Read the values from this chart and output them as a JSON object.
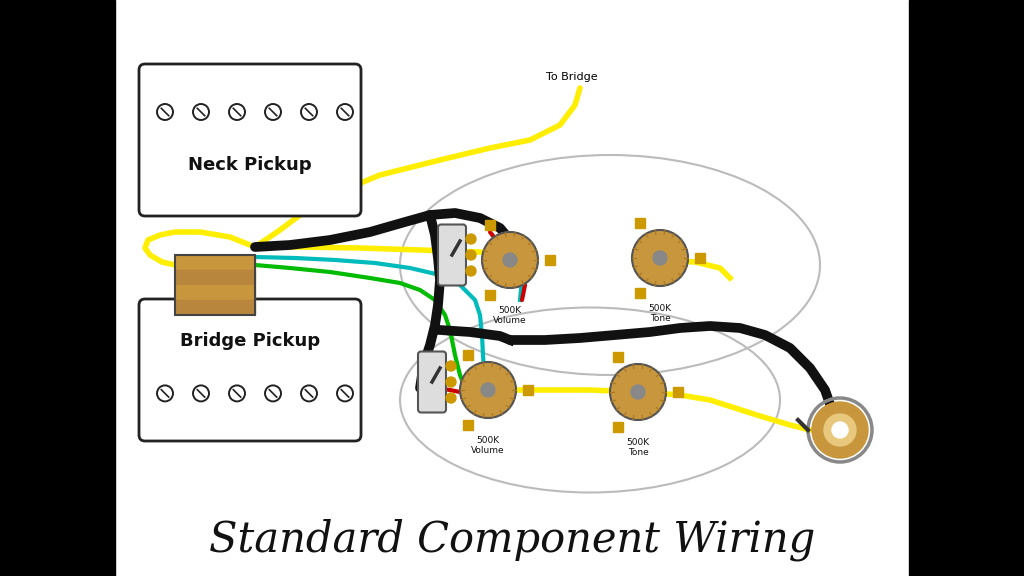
{
  "title": "Standard Component Wiring",
  "title_fontsize": 30,
  "title_font": "serif",
  "title_style": "italic",
  "bg_color": "#ffffff",
  "wire_colors": {
    "yellow": "#ffee00",
    "black": "#111111",
    "green": "#00bb00",
    "red": "#cc0000",
    "cyan": "#00bbbb",
    "orange": "#cc6600"
  },
  "to_bridge_label": "To Bridge",
  "neck_label": "Neck Pickup",
  "bridge_label": "Bridge Pickup",
  "neck_vol_label": "500K\nVolume",
  "neck_tone_label": "500K\nTone",
  "bridge_vol_label": "500K\nVolume",
  "bridge_tone_label": "500K\nTone"
}
